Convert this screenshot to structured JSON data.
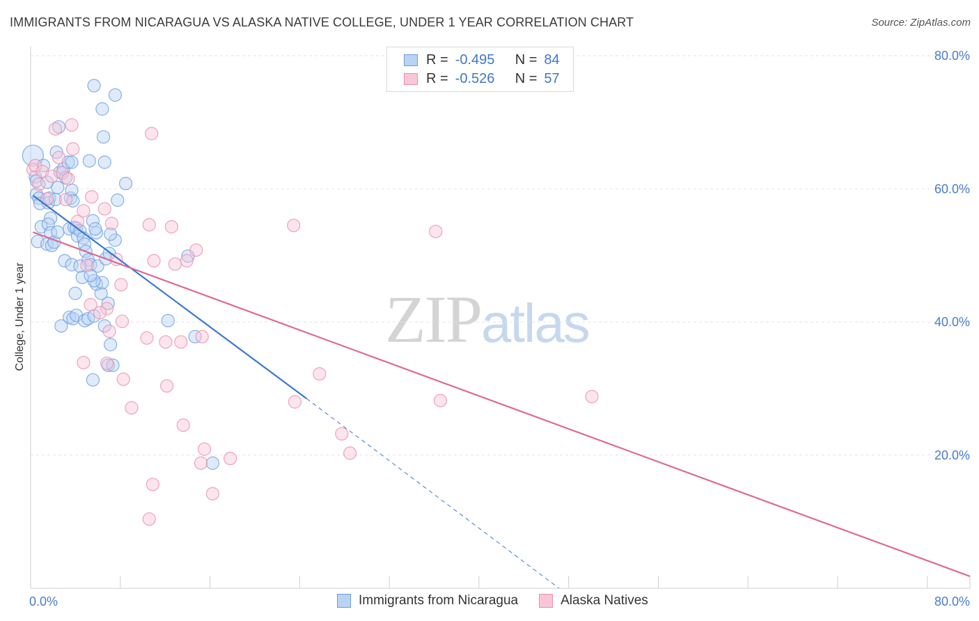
{
  "title": "IMMIGRANTS FROM NICARAGUA VS ALASKA NATIVE COLLEGE, UNDER 1 YEAR CORRELATION CHART",
  "source": "Source: ZipAtlas.com",
  "watermark": {
    "zip": "ZIP",
    "atlas": "atlas"
  },
  "legend": {
    "r_label": "R =",
    "n_label": "N =",
    "rows": [
      {
        "r": "-0.495",
        "n": "84",
        "fill": "#b9d3f3",
        "stroke": "#6d9de0"
      },
      {
        "r": "-0.526",
        "n": "57",
        "fill": "#f9c6d6",
        "stroke": "#e98fae"
      }
    ]
  },
  "bottom_legend": [
    {
      "label": "Immigrants from Nicaragua",
      "fill": "#b9d3f3",
      "stroke": "#6d9de0"
    },
    {
      "label": "Alaska Natives",
      "fill": "#f9c6d6",
      "stroke": "#e98fae"
    }
  ],
  "chart_data": {
    "type": "scatter",
    "title": "IMMIGRANTS FROM NICARAGUA VS ALASKA NATIVE COLLEGE, UNDER 1 YEAR CORRELATION CHART",
    "xlabel": "",
    "ylabel": "College, Under 1 year",
    "xlim": [
      0,
      80
    ],
    "ylim": [
      0,
      80
    ],
    "x_tick_labels": [
      "0.0%",
      "80.0%"
    ],
    "y_tick_labels": [
      "20.0%",
      "40.0%",
      "60.0%",
      "80.0%"
    ],
    "y_ticks": [
      20,
      40,
      60,
      80
    ],
    "grid": true,
    "series": [
      {
        "name": "Immigrants from Nicaragua",
        "color": "#6d9de0",
        "fill": "#b9d3f3",
        "trend": {
          "x0": 0.2,
          "y0": 59.0,
          "x1": 23.5,
          "y1": 28.5,
          "dash_x1": 45.0,
          "dash_y1": 0.0,
          "color": "#3a78d0"
        },
        "points": [
          [
            0.2,
            65.0
          ],
          [
            0.4,
            61.8
          ],
          [
            0.5,
            61.2
          ],
          [
            0.5,
            59.2
          ],
          [
            0.7,
            58.6
          ],
          [
            0.8,
            57.8
          ],
          [
            0.6,
            52.1
          ],
          [
            0.9,
            54.3
          ],
          [
            1.1,
            63.5
          ],
          [
            1.4,
            61.0
          ],
          [
            1.6,
            58.6
          ],
          [
            1.5,
            57.9
          ],
          [
            1.7,
            55.6
          ],
          [
            1.5,
            54.7
          ],
          [
            1.7,
            53.4
          ],
          [
            1.4,
            51.7
          ],
          [
            1.8,
            51.5
          ],
          [
            2.0,
            52.0
          ],
          [
            2.3,
            53.5
          ],
          [
            2.1,
            58.4
          ],
          [
            2.3,
            60.2
          ],
          [
            2.5,
            62.5
          ],
          [
            2.2,
            65.5
          ],
          [
            2.4,
            69.3
          ],
          [
            2.8,
            63.0
          ],
          [
            3.0,
            61.7
          ],
          [
            3.2,
            64.0
          ],
          [
            3.4,
            58.6
          ],
          [
            3.5,
            59.8
          ],
          [
            3.6,
            58.2
          ],
          [
            3.3,
            54.0
          ],
          [
            3.7,
            54.2
          ],
          [
            3.9,
            54.1
          ],
          [
            4.0,
            52.9
          ],
          [
            4.2,
            53.7
          ],
          [
            4.5,
            52.6
          ],
          [
            4.6,
            51.7
          ],
          [
            4.7,
            50.6
          ],
          [
            4.9,
            49.3
          ],
          [
            5.1,
            48.6
          ],
          [
            2.9,
            49.2
          ],
          [
            3.5,
            48.6
          ],
          [
            4.2,
            48.4
          ],
          [
            4.4,
            46.7
          ],
          [
            3.8,
            44.3
          ],
          [
            3.3,
            40.7
          ],
          [
            3.6,
            40.5
          ],
          [
            3.9,
            41.0
          ],
          [
            4.6,
            40.2
          ],
          [
            4.9,
            40.5
          ],
          [
            5.4,
            40.9
          ],
          [
            2.6,
            39.4
          ],
          [
            6.3,
            39.4
          ],
          [
            6.6,
            42.8
          ],
          [
            6.0,
            44.3
          ],
          [
            5.6,
            45.7
          ],
          [
            6.1,
            45.9
          ],
          [
            5.4,
            46.2
          ],
          [
            5.1,
            47.0
          ],
          [
            5.7,
            48.4
          ],
          [
            6.4,
            49.5
          ],
          [
            6.7,
            50.3
          ],
          [
            7.2,
            52.3
          ],
          [
            6.8,
            53.2
          ],
          [
            5.6,
            53.4
          ],
          [
            5.3,
            55.2
          ],
          [
            5.5,
            54.0
          ],
          [
            7.4,
            58.3
          ],
          [
            3.5,
            64.0
          ],
          [
            5.0,
            64.2
          ],
          [
            6.3,
            64.0
          ],
          [
            6.2,
            67.8
          ],
          [
            6.1,
            72.0
          ],
          [
            5.4,
            75.5
          ],
          [
            7.2,
            74.1
          ],
          [
            8.1,
            60.8
          ],
          [
            5.3,
            31.3
          ],
          [
            6.8,
            36.6
          ],
          [
            6.6,
            33.5
          ],
          [
            7.0,
            33.5
          ],
          [
            14.0,
            37.8
          ],
          [
            11.7,
            40.2
          ],
          [
            15.5,
            18.8
          ],
          [
            13.4,
            49.9
          ]
        ]
      },
      {
        "name": "Alaska Natives",
        "color": "#e98fae",
        "fill": "#f9c6d6",
        "trend": {
          "x0": 0.2,
          "y0": 53.5,
          "x1": 80.0,
          "y1": 1.8,
          "color": "#dd6a95"
        },
        "points": [
          [
            0.2,
            62.9
          ],
          [
            0.4,
            63.5
          ],
          [
            0.7,
            60.7
          ],
          [
            1.0,
            62.6
          ],
          [
            1.4,
            58.5
          ],
          [
            1.8,
            61.9
          ],
          [
            2.1,
            69.0
          ],
          [
            2.4,
            64.7
          ],
          [
            2.7,
            62.4
          ],
          [
            3.0,
            58.4
          ],
          [
            3.2,
            61.5
          ],
          [
            3.5,
            69.6
          ],
          [
            3.6,
            66.0
          ],
          [
            4.0,
            55.1
          ],
          [
            4.5,
            56.7
          ],
          [
            5.2,
            58.8
          ],
          [
            6.3,
            57.0
          ],
          [
            6.9,
            54.8
          ],
          [
            7.3,
            49.4
          ],
          [
            7.7,
            45.6
          ],
          [
            7.8,
            40.1
          ],
          [
            6.5,
            42.0
          ],
          [
            5.9,
            41.4
          ],
          [
            5.1,
            42.6
          ],
          [
            4.8,
            48.5
          ],
          [
            6.7,
            38.6
          ],
          [
            6.5,
            33.8
          ],
          [
            4.5,
            33.9
          ],
          [
            7.9,
            31.4
          ],
          [
            8.6,
            27.1
          ],
          [
            10.3,
            68.3
          ],
          [
            10.1,
            54.6
          ],
          [
            10.5,
            49.2
          ],
          [
            12.0,
            54.3
          ],
          [
            12.3,
            48.7
          ],
          [
            13.3,
            49.2
          ],
          [
            14.1,
            50.8
          ],
          [
            9.9,
            37.6
          ],
          [
            11.5,
            37.0
          ],
          [
            12.8,
            37.0
          ],
          [
            14.6,
            37.8
          ],
          [
            11.6,
            30.4
          ],
          [
            13.0,
            24.5
          ],
          [
            14.8,
            20.9
          ],
          [
            14.5,
            18.8
          ],
          [
            15.5,
            14.2
          ],
          [
            10.4,
            15.6
          ],
          [
            10.1,
            10.4
          ],
          [
            17.0,
            19.5
          ],
          [
            22.4,
            54.5
          ],
          [
            22.5,
            28.0
          ],
          [
            24.6,
            32.2
          ],
          [
            27.2,
            20.3
          ],
          [
            26.5,
            23.2
          ],
          [
            34.5,
            53.6
          ],
          [
            34.9,
            28.2
          ],
          [
            47.8,
            28.8
          ]
        ]
      }
    ]
  }
}
